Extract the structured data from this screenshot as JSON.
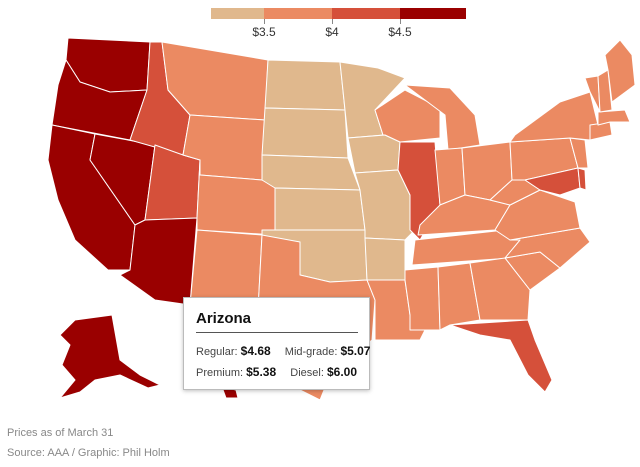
{
  "legend": {
    "colors": [
      "#e0b88d",
      "#eb8a62",
      "#d5503a",
      "#9a0000"
    ],
    "ticks": [
      "$3.5",
      "$4",
      "$4.5"
    ]
  },
  "color_scale": {
    "light": "#e0b88d",
    "orange": "#eb8a62",
    "red": "#d5503a",
    "dark": "#9a0000"
  },
  "tooltip": {
    "state": "Arizona",
    "regular_label": "Regular:",
    "regular_value": "$4.68",
    "midgrade_label": "Mid-grade:",
    "midgrade_value": "$5.07",
    "premium_label": "Premium:",
    "premium_value": "$5.38",
    "diesel_label": "Diesel:",
    "diesel_value": "$6.00"
  },
  "footer": {
    "note": "Prices as of March 31",
    "source": "Source: AAA / Graphic: Phil Holm"
  }
}
